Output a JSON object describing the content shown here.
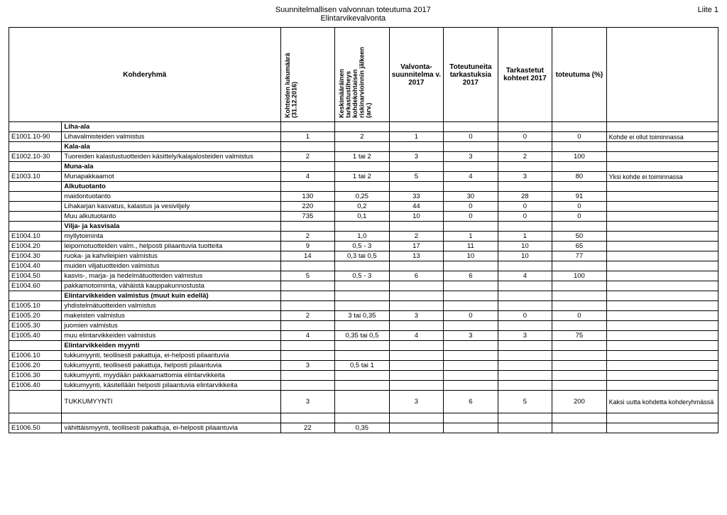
{
  "header": {
    "title_line1": "Suunnitelmallisen valvonnan toteutuma 2017",
    "title_line2": "Elintarvikevalvonta",
    "right": "Liite 1"
  },
  "columns": {
    "kohderyhma": "Kohderyhmä",
    "kohteiden": "Kohteiden lukumäärä (31.12.2016)",
    "keskim": "Keskimääräinen tarkastustiheys kohdekohtaisen riskinarvioinnin jälkeen (arv.)",
    "valvonta": "Valvonta-\nsuunnitelma v. 2017",
    "toteutuneita": "Toteutuneita tarkastuksia 2017",
    "tarkastetut": "Tarkastetut kohteet 2017",
    "toteutuma": "toteutuma (%)"
  },
  "rows": [
    {
      "section": true,
      "desc": "Liha-ala"
    },
    {
      "code": "E1001.10-90",
      "desc": "Lihavalmisteiden valmistus",
      "c1": "1",
      "c2": "2",
      "c3": "1",
      "c4": "0",
      "c5": "0",
      "c6": "0",
      "note": "Kohde ei ollut toiminnassa"
    },
    {
      "section": true,
      "desc": "Kala-ala"
    },
    {
      "code": "E1002.10-30",
      "desc": "Tuoreiden kalastustuotteiden käsittely/kalajalosteiden valmistus",
      "c1": "2",
      "c2": "1 tai 2",
      "c3": "3",
      "c4": "3",
      "c5": "2",
      "c6": "100"
    },
    {
      "section": true,
      "desc": "Muna-ala"
    },
    {
      "code": "E1003.10",
      "desc": "Munapakkaamot",
      "c1": "4",
      "c2": "1 tai 2",
      "c3": "5",
      "c4": "4",
      "c5": "3",
      "c6": "80",
      "note": "Yksi kohde ei toiminnassa"
    },
    {
      "section": true,
      "desc": "Alkutuotanto"
    },
    {
      "desc": "maidontuotanto",
      "c1": "130",
      "c2": "0,25",
      "c3": "33",
      "c4": "30",
      "c5": "28",
      "c6": "91"
    },
    {
      "desc": "Lihakarjan kasvatus, kalastus ja vesiviljely",
      "c1": "220",
      "c2": "0,2",
      "c3": "44",
      "c4": "0",
      "c5": "0",
      "c6": "0"
    },
    {
      "desc": "Muu alkutuotanto",
      "c1": "735",
      "c2": "0,1",
      "c3": "10",
      "c4": "0",
      "c5": "0",
      "c6": "0"
    },
    {
      "section": true,
      "desc": "Vilja- ja kasvisala"
    },
    {
      "code": "E1004.10",
      "desc": "myllytoiminta",
      "c1": "2",
      "c2": "1,0",
      "c3": "2",
      "c4": "1",
      "c5": "1",
      "c6": "50"
    },
    {
      "code": "E1004.20",
      "desc": "leipomotuotteiden valm., helposti pilaantuvia tuotteita",
      "c1": "9",
      "c2": "0,5 - 3",
      "c3": "17",
      "c4": "11",
      "c5": "10",
      "c6": "65"
    },
    {
      "code": "E1004.30",
      "desc": "ruoka- ja kahvileipien valmistus",
      "c1": "14",
      "c2": "0,3 tai 0,5",
      "c3": "13",
      "c4": "10",
      "c5": "10",
      "c6": "77"
    },
    {
      "code": "E1004.40",
      "desc": "muiden viljatuotteiden valmistus"
    },
    {
      "code": "E1004.50",
      "desc": "kasvis-, marja- ja hedelmätuotteiden valmistus",
      "c1": "5",
      "c2": "0,5 - 3",
      "c3": "6",
      "c4": "6",
      "c5": "4",
      "c6": "100"
    },
    {
      "code": "E1004.60",
      "desc": "pakkamotoiminta, vähäistä kauppakunnostusta"
    },
    {
      "section": true,
      "desc": "Elintarvikkeiden valmistus (muut kuin edellä)"
    },
    {
      "code": "E1005.10",
      "desc": "yhdistelmätuotteiden valmistus"
    },
    {
      "code": "E1005.20",
      "desc": "makeisten valmistus",
      "c1": "2",
      "c2": "3 tai 0,35",
      "c3": "3",
      "c4": "0",
      "c5": "0",
      "c6": "0"
    },
    {
      "code": "E1005.30",
      "desc": "juomien valmistus"
    },
    {
      "code": "E1005.40",
      "desc": "muu elintarvikkeiden valmistus",
      "c1": "4",
      "c2": "0,35 tai 0,5",
      "c3": "4",
      "c4": "3",
      "c5": "3",
      "c6": "75"
    },
    {
      "section": true,
      "desc": "Elintarvikkeiden myynti"
    },
    {
      "code": "E1006.10",
      "desc": "tukkumyynti, teollisesti pakattuja, ei-helposti pilaantuvia"
    },
    {
      "code": "E1006.20",
      "desc": "tukkumyynti, teollisesti pakattuja, helposti pilaantuvia",
      "c1": "3",
      "c2": "0,5 tai 1"
    },
    {
      "code": "E1006.30",
      "desc": "tukkumyynti, myydään pakkaamattomia elintarvikkeita"
    },
    {
      "code": "E1006.40",
      "desc": "tukkumyynti, käsitellään helposti pilaantuvia elintarvikkeita"
    },
    {
      "desc": "TUKKUMYYNTI",
      "c1": "3",
      "c3": "3",
      "c4": "6",
      "c5": "5",
      "c6": "200",
      "note": "Kaksi uutta kohdetta kohderyhmässä",
      "tall": true
    },
    {
      "spacer": true
    },
    {
      "code": "E1006.50",
      "desc": "vähittäismyynti, teollisesti pakattuja, ei-helposti pilaantuvia",
      "c1": "22",
      "c2": "0,35"
    }
  ]
}
